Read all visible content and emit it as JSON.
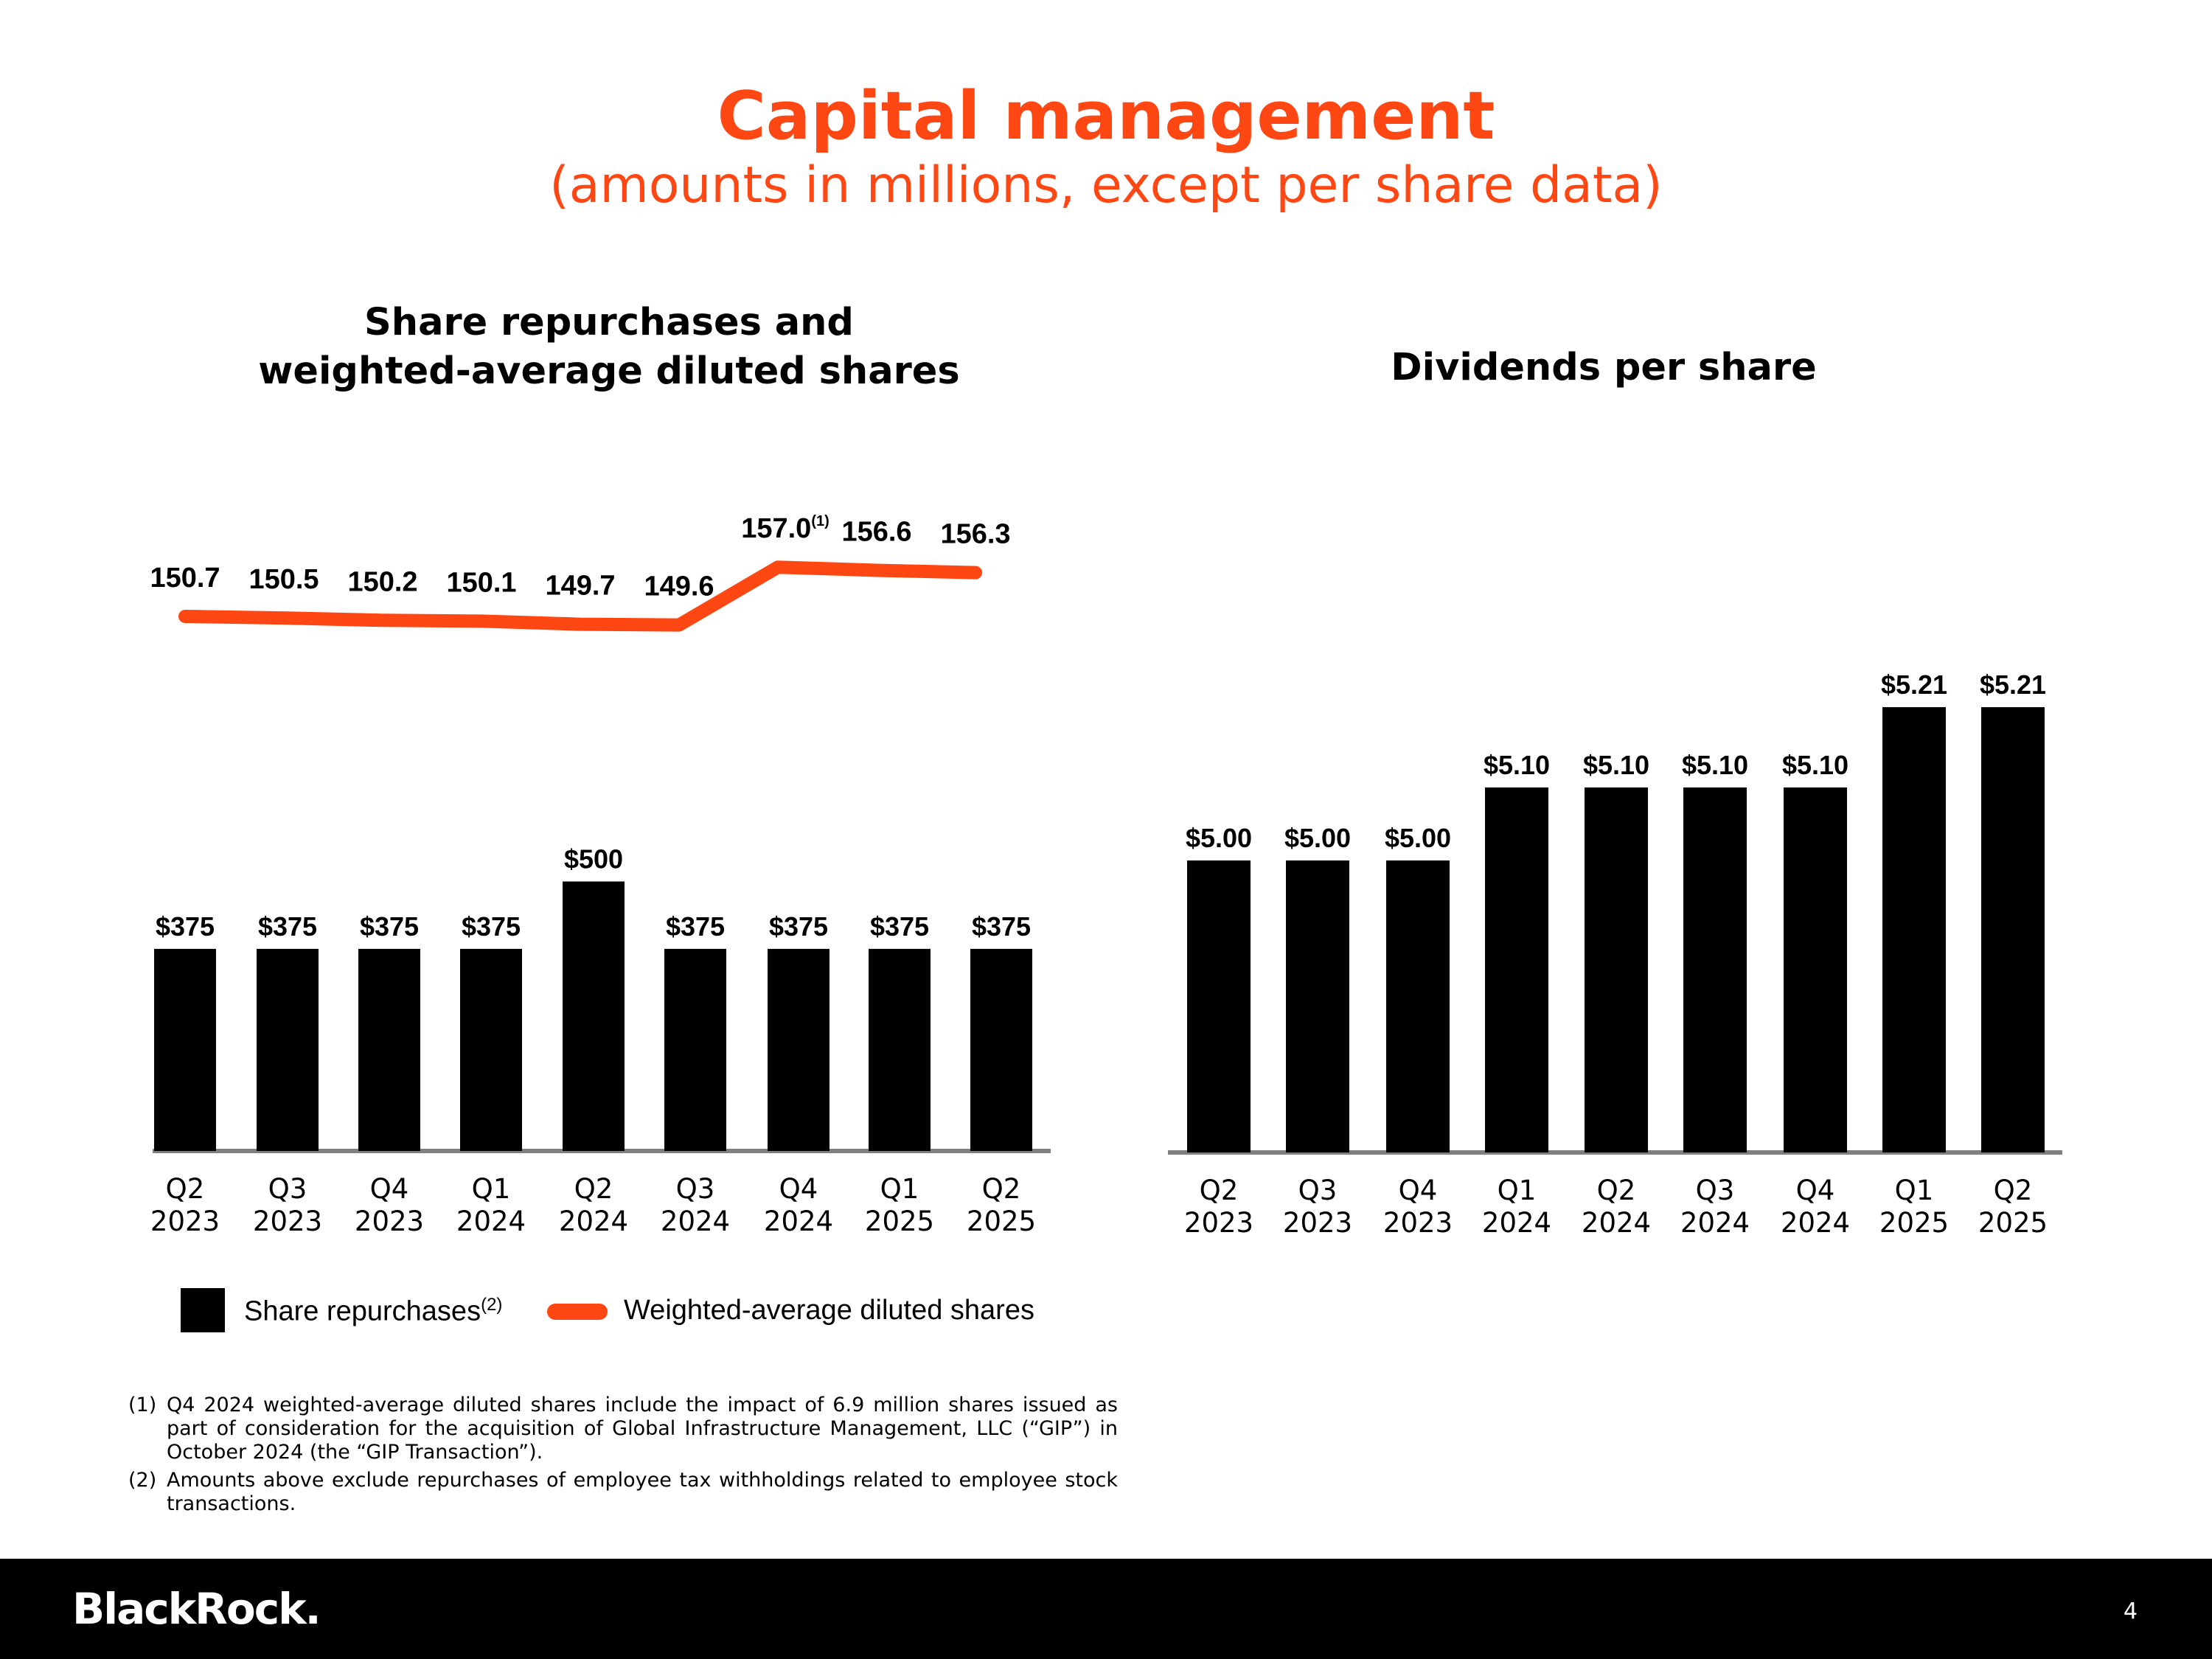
{
  "title": "Capital management",
  "subtitle": "(amounts in millions, except per share data)",
  "colors": {
    "accent": "#ff4713",
    "bar": "#000000",
    "axis": "#808080"
  },
  "chart_data": [
    {
      "type": "bar+line",
      "title": [
        "Share repurchases and",
        "weighted-average diluted shares"
      ],
      "categories": [
        [
          "Q2",
          "2023"
        ],
        [
          "Q3",
          "2023"
        ],
        [
          "Q4",
          "2023"
        ],
        [
          "Q1",
          "2024"
        ],
        [
          "Q2",
          "2024"
        ],
        [
          "Q3",
          "2024"
        ],
        [
          "Q4",
          "2024"
        ],
        [
          "Q1",
          "2025"
        ],
        [
          "Q2",
          "2025"
        ]
      ],
      "series": [
        {
          "name": "Share repurchases",
          "name_superscript": "(2)",
          "type": "bar",
          "values": [
            375,
            375,
            375,
            375,
            500,
            375,
            375,
            375,
            375
          ],
          "labels": [
            "$375",
            "$375",
            "$375",
            "$375",
            "$500",
            "$375",
            "$375",
            "$375",
            "$375"
          ]
        },
        {
          "name": "Weighted-average diluted shares",
          "type": "line",
          "values": [
            150.7,
            150.5,
            150.2,
            150.1,
            149.7,
            149.6,
            157.0,
            156.6,
            156.3
          ],
          "labels": [
            "150.7",
            "150.5",
            "150.2",
            "150.1",
            "149.7",
            "149.6",
            "157.0",
            "156.6",
            "156.3"
          ],
          "label_superscripts": [
            "",
            "",
            "",
            "",
            "",
            "",
            "(1)",
            "",
            ""
          ]
        }
      ],
      "legend": "bottom",
      "grid": false
    },
    {
      "type": "bar",
      "title": [
        "Dividends per share"
      ],
      "categories": [
        [
          "Q2",
          "2023"
        ],
        [
          "Q3",
          "2023"
        ],
        [
          "Q4",
          "2023"
        ],
        [
          "Q1",
          "2024"
        ],
        [
          "Q2",
          "2024"
        ],
        [
          "Q3",
          "2024"
        ],
        [
          "Q4",
          "2024"
        ],
        [
          "Q1",
          "2025"
        ],
        [
          "Q2",
          "2025"
        ]
      ],
      "values": [
        5.0,
        5.0,
        5.0,
        5.1,
        5.1,
        5.1,
        5.1,
        5.21,
        5.21
      ],
      "labels": [
        "$5.00",
        "$5.00",
        "$5.00",
        "$5.10",
        "$5.10",
        "$5.10",
        "$5.10",
        "$5.21",
        "$5.21"
      ],
      "grid": false
    }
  ],
  "footnotes": [
    {
      "num": "(1)",
      "text": "Q4 2024 weighted-average diluted shares include the impact of 6.9 million shares issued as part of consideration for the acquisition of Global Infrastructure Management, LLC (“GIP”) in October 2024 (the “GIP Transaction”)."
    },
    {
      "num": "(2)",
      "text": "Amounts above exclude repurchases of employee tax withholdings related to employee stock transactions."
    }
  ],
  "footer": {
    "logo": "BlackRock.",
    "page_number": "4"
  }
}
